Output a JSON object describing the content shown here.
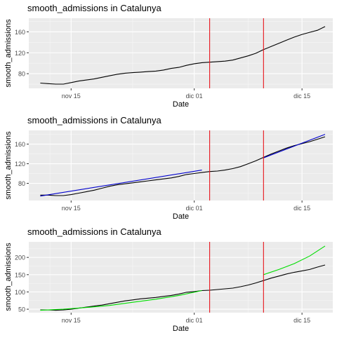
{
  "chart_data": [
    {
      "type": "line",
      "title": "smooth_admissions in Catalunya",
      "xlabel": "Date",
      "ylabel": "smooth_admissions",
      "x_ticks": [
        {
          "label": "nov 15",
          "day": 15
        },
        {
          "label": "dic 01",
          "day": 31
        },
        {
          "label": "dic 15",
          "day": 45
        }
      ],
      "y_ticks": [
        80,
        120,
        160
      ],
      "xlim": [
        9.5,
        49
      ],
      "ylim": [
        52,
        186
      ],
      "grid": true,
      "vlines": [
        33,
        40
      ],
      "series": [
        {
          "color": "#000000",
          "x": [
            11,
            12,
            13,
            14,
            15,
            16,
            17,
            18,
            19,
            20,
            21,
            22,
            23,
            24,
            25,
            26,
            27,
            28,
            29,
            30,
            31,
            32,
            33,
            34,
            35,
            36,
            37,
            38,
            39,
            40,
            41,
            42,
            43,
            44,
            45,
            46,
            47,
            48
          ],
          "y": [
            62,
            61,
            60,
            60,
            63,
            66,
            68,
            70,
            73,
            76,
            79,
            81,
            82,
            83,
            84,
            85,
            87,
            90,
            92,
            96,
            99,
            101,
            102,
            103,
            104,
            106,
            110,
            114,
            119,
            126,
            132,
            138,
            144,
            150,
            155,
            159,
            163,
            170
          ]
        }
      ]
    },
    {
      "type": "line",
      "title": "smooth_admissions in Catalunya",
      "xlabel": "Date",
      "ylabel": "smooth_admissions",
      "x_ticks": [
        {
          "label": "nov 15",
          "day": 15
        },
        {
          "label": "dic 01",
          "day": 31
        },
        {
          "label": "dic 15",
          "day": 45
        }
      ],
      "y_ticks": [
        80,
        120,
        160
      ],
      "xlim": [
        9.5,
        49
      ],
      "ylim": [
        45,
        188
      ],
      "grid": true,
      "vlines": [
        33,
        40
      ],
      "series": [
        {
          "color": "#000000",
          "x": [
            11,
            12,
            13,
            14,
            15,
            16,
            17,
            18,
            19,
            20,
            21,
            22,
            23,
            24,
            25,
            26,
            27,
            28,
            29,
            30,
            31,
            32,
            33,
            34,
            35,
            36,
            37,
            38,
            39,
            40,
            41,
            42,
            43,
            44,
            45,
            46,
            47,
            48
          ],
          "y": [
            56,
            56,
            55,
            55,
            57,
            60,
            63,
            66,
            70,
            74,
            77,
            79,
            81,
            83,
            85,
            87,
            89,
            91,
            94,
            98,
            100,
            102,
            104,
            105,
            107,
            110,
            114,
            120,
            126,
            133,
            140,
            146,
            152,
            157,
            161,
            165,
            170,
            175
          ]
        },
        {
          "color": "#0000cc",
          "x": [
            11,
            32
          ],
          "y": [
            54,
            107
          ]
        },
        {
          "color": "#0000cc",
          "x": [
            40,
            48
          ],
          "y": [
            132,
            180
          ]
        }
      ]
    },
    {
      "type": "line",
      "title": "smooth_admissions in Catalunya",
      "xlabel": "Date",
      "ylabel": "smooth_admissions",
      "x_ticks": [
        {
          "label": "nov 15",
          "day": 15
        },
        {
          "label": "dic 01",
          "day": 31
        },
        {
          "label": "dic 15",
          "day": 45
        }
      ],
      "y_ticks": [
        50,
        100,
        150,
        200
      ],
      "xlim": [
        9.5,
        49
      ],
      "ylim": [
        40,
        245
      ],
      "grid": true,
      "vlines": [
        33,
        40
      ],
      "series": [
        {
          "color": "#000000",
          "x": [
            11,
            12,
            13,
            14,
            15,
            16,
            17,
            18,
            19,
            20,
            21,
            22,
            23,
            24,
            25,
            26,
            27,
            28,
            29,
            30,
            31,
            32,
            33,
            34,
            35,
            36,
            37,
            38,
            39,
            40,
            41,
            42,
            43,
            44,
            45,
            46,
            47,
            48
          ],
          "y": [
            48,
            48,
            47,
            48,
            50,
            53,
            56,
            59,
            62,
            66,
            70,
            74,
            77,
            80,
            82,
            84,
            87,
            90,
            94,
            99,
            101,
            104,
            105,
            107,
            109,
            111,
            115,
            120,
            126,
            133,
            140,
            146,
            152,
            157,
            161,
            165,
            172,
            178
          ]
        },
        {
          "color": "#00dd00",
          "x": [
            11,
            14,
            17,
            20,
            23,
            26,
            29,
            32
          ],
          "y": [
            47,
            50,
            55,
            61,
            70,
            79,
            90,
            104
          ]
        },
        {
          "color": "#00dd00",
          "x": [
            40,
            42,
            44,
            46,
            48
          ],
          "y": [
            150,
            165,
            182,
            204,
            233
          ]
        }
      ]
    }
  ]
}
